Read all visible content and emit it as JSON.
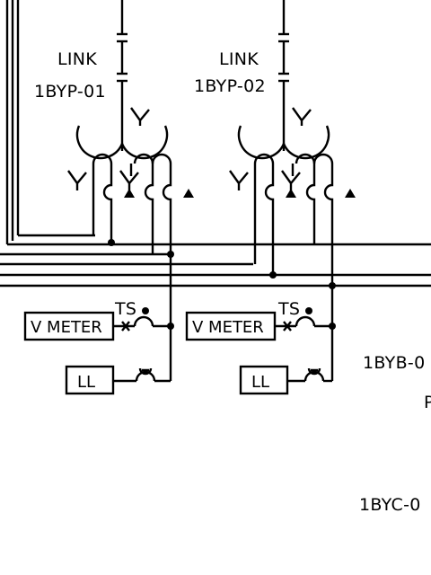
{
  "links": [
    {
      "title": "LINK",
      "tag": "1BYP-01"
    },
    {
      "title": "LINK",
      "tag": "1BYP-02"
    }
  ],
  "meters": [
    {
      "ts_label": "TS",
      "meter_label": "V METER",
      "ll_label": "LL"
    },
    {
      "ts_label": "TS",
      "meter_label": "V METER",
      "ll_label": "LL"
    }
  ],
  "right_tags": {
    "byb": "1BYB-0",
    "p": "P",
    "byc": "1BYC-0"
  },
  "colors": {
    "line": "#000000",
    "background": "#ffffff"
  }
}
